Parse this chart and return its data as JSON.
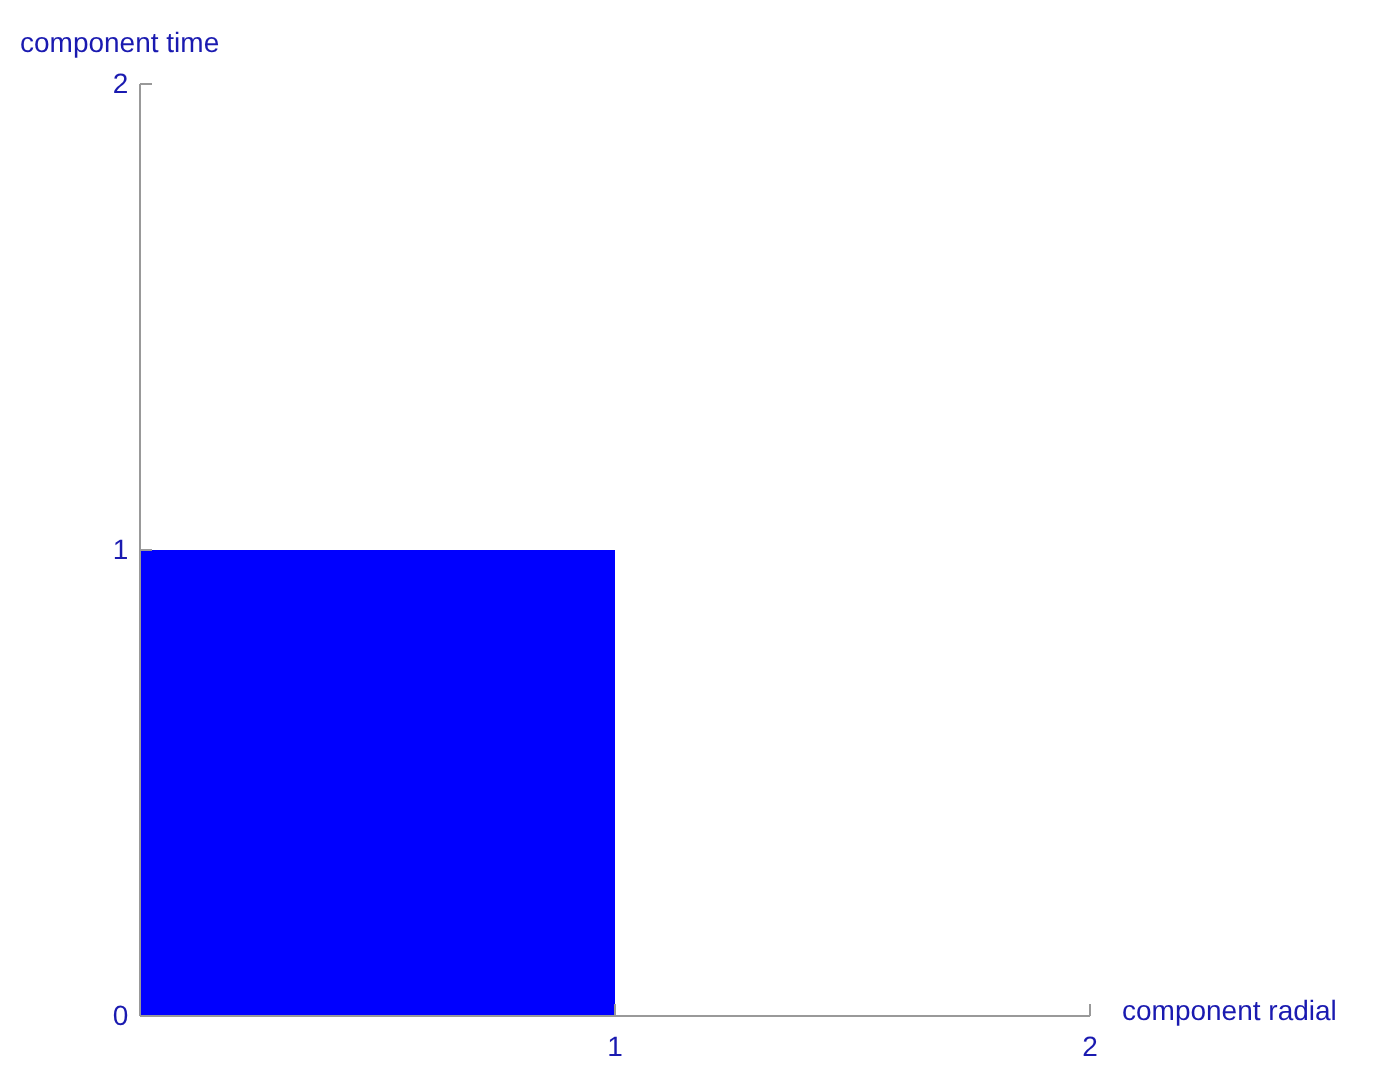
{
  "chart_data": {
    "type": "histogram",
    "xlabel": "component radial",
    "ylabel": "component time",
    "bins": [
      0,
      1
    ],
    "values": [
      1
    ],
    "color": "#0000ff",
    "xlim": [
      0,
      2
    ],
    "xticks": [
      {
        "value": 0,
        "label": null
      },
      1,
      2
    ],
    "ylim": [
      0,
      2
    ],
    "yticks": [
      0,
      1,
      2
    ],
    "grid": false
  }
}
